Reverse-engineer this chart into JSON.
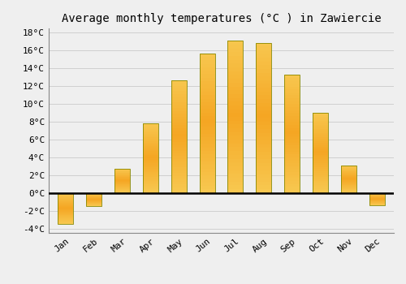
{
  "title": "Average monthly temperatures (°C ) in Zawiercie",
  "months": [
    "Jan",
    "Feb",
    "Mar",
    "Apr",
    "May",
    "Jun",
    "Jul",
    "Aug",
    "Sep",
    "Oct",
    "Nov",
    "Dec"
  ],
  "values": [
    -3.5,
    -1.5,
    2.7,
    7.8,
    12.7,
    15.7,
    17.1,
    16.9,
    13.3,
    9.0,
    3.1,
    -1.4
  ],
  "bar_color_main": "#F5A623",
  "bar_color_light": "#F8C870",
  "bar_edge_color": "#888800",
  "ylim_min": -4.5,
  "ylim_max": 18.5,
  "yticks": [
    -4,
    -2,
    0,
    2,
    4,
    6,
    8,
    10,
    12,
    14,
    16,
    18
  ],
  "background_color": "#efefef",
  "grid_color": "#d0d0d0",
  "title_fontsize": 10,
  "tick_fontsize": 8,
  "font_family": "monospace",
  "bar_width": 0.55
}
